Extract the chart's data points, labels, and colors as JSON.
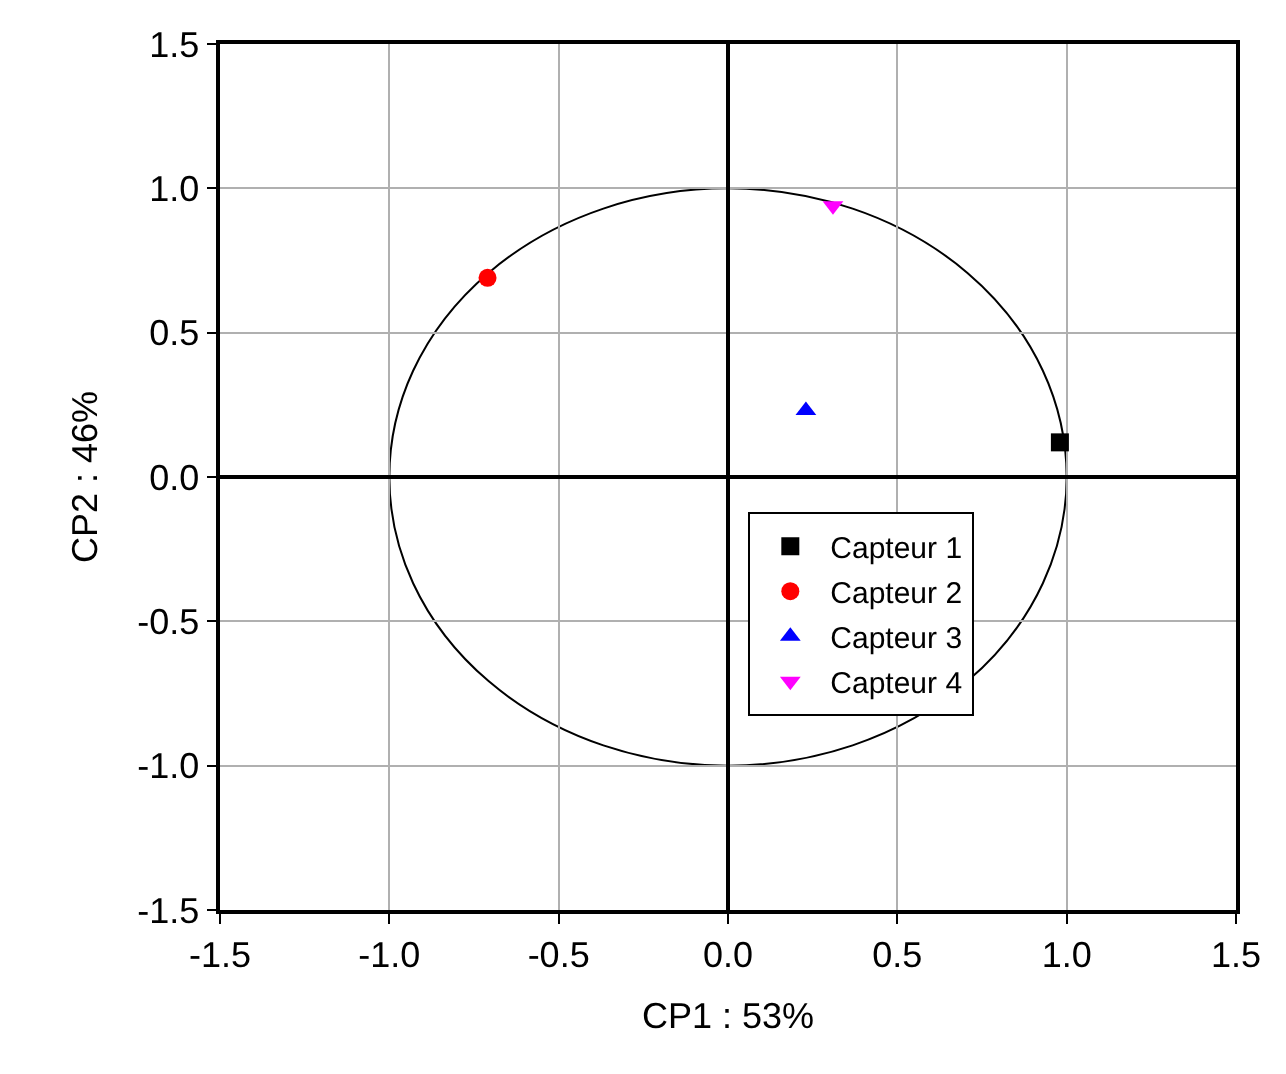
{
  "chart_data": {
    "type": "scatter",
    "xlabel": "CP1 : 53%",
    "ylabel": "CP2 : 46%",
    "xlim": [
      -1.5,
      1.5
    ],
    "ylim": [
      -1.5,
      1.5
    ],
    "xticks": [
      {
        "value": -1.5,
        "label": "-1.5"
      },
      {
        "value": -1.0,
        "label": "-1.0"
      },
      {
        "value": -0.5,
        "label": "-0.5"
      },
      {
        "value": 0,
        "label": "0.0"
      },
      {
        "value": 0.5,
        "label": "0.5"
      },
      {
        "value": 1.0,
        "label": "1.0"
      },
      {
        "value": 1.5,
        "label": "1.5"
      }
    ],
    "yticks": [
      {
        "value": -1.5,
        "label": "-1.5"
      },
      {
        "value": -1.0,
        "label": "-1.0"
      },
      {
        "value": -0.5,
        "label": "-0.5"
      },
      {
        "value": 0,
        "label": "0.0"
      },
      {
        "value": 0.5,
        "label": "0.5"
      },
      {
        "value": 1.0,
        "label": "1.0"
      },
      {
        "value": 1.5,
        "label": "1.5"
      }
    ],
    "grid": true,
    "legend": "bottom",
    "series": [
      {
        "name": "Capteur 1",
        "color": "#000000",
        "marker": "square",
        "x": [
          0.98
        ],
        "values": [
          0.12
        ]
      },
      {
        "name": "Capteur 2",
        "color": "#ff0000",
        "marker": "circle",
        "x": [
          -0.71
        ],
        "values": [
          0.69
        ]
      },
      {
        "name": "Capteur 3",
        "color": "#0000ff",
        "marker": "triangle",
        "x": [
          0.23
        ],
        "values": [
          0.23
        ]
      },
      {
        "name": "Capteur 4",
        "color": "#ff00ff",
        "marker": "triangle-down",
        "x": [
          0.31
        ],
        "values": [
          0.94
        ]
      }
    ]
  }
}
